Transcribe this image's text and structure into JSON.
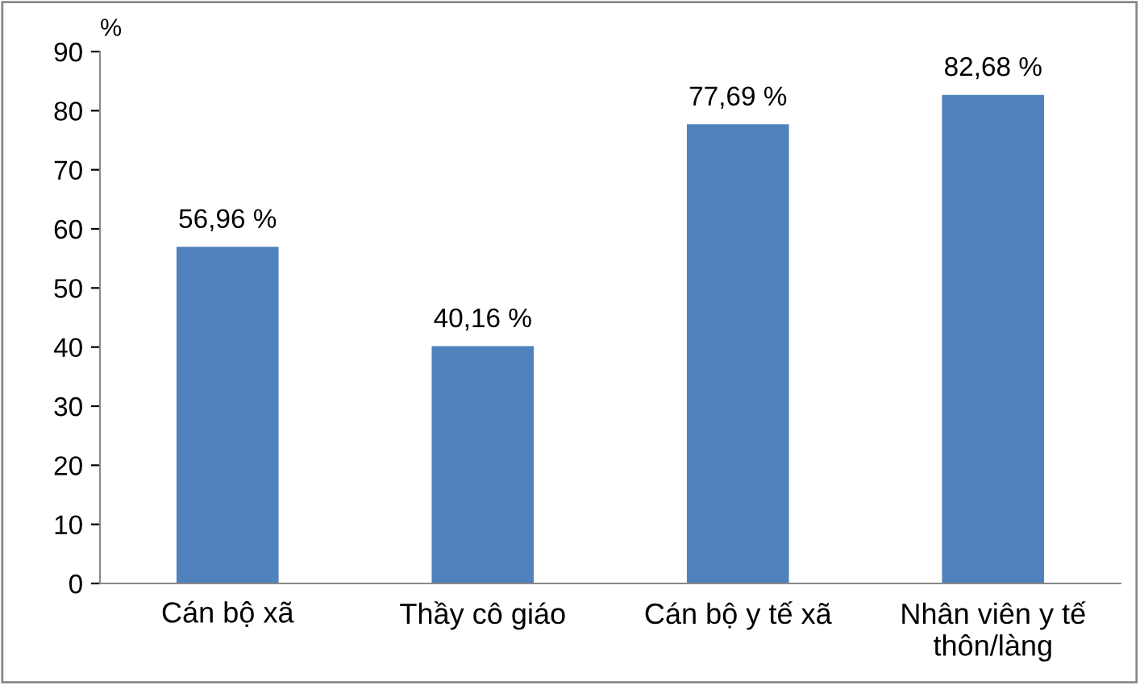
{
  "chart_data": {
    "type": "bar",
    "ylabel": "%",
    "categories": [
      "Cán bộ xã",
      "Thầy cô giáo",
      "Cán bộ y tế xã",
      "Nhân viên y tế\nthôn/làng"
    ],
    "values": [
      56.96,
      40.16,
      77.69,
      82.68
    ],
    "color": "#4f81bd",
    "value_labels": [
      "56,96 %",
      "40,16 %",
      "77,69 %",
      "82,68 %"
    ],
    "ylim": [
      0,
      90
    ],
    "yticks": [
      0,
      10,
      20,
      30,
      40,
      50,
      60,
      70,
      80,
      90
    ],
    "grid": false
  }
}
